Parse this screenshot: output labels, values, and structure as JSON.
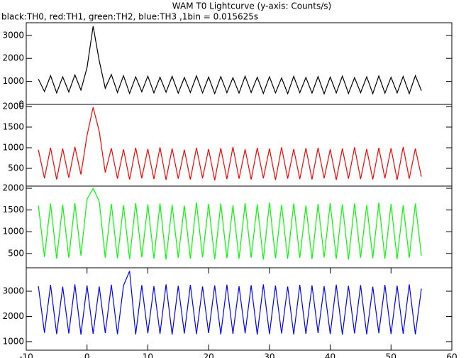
{
  "chart_data": [
    {
      "type": "line",
      "title": "WAM T0 Lightcurve (y-axis: Counts/s)",
      "subtitle": "black:TH0, red:TH1, green:TH2, blue:TH3 ,1bin = 0.015625s",
      "x": [
        -8,
        -7,
        -6,
        -5,
        -4,
        -3,
        -2,
        -1,
        0,
        1,
        2,
        3,
        4,
        5,
        6,
        7,
        8,
        9,
        10,
        11,
        12,
        13,
        14,
        15,
        16,
        17,
        18,
        19,
        20,
        21,
        22,
        23,
        24,
        25,
        26,
        27,
        28,
        29,
        30,
        31,
        32,
        33,
        34,
        35,
        36,
        37,
        38,
        39,
        40,
        41,
        42,
        43,
        44,
        45,
        46,
        47,
        48,
        49,
        50,
        51,
        52,
        53,
        54,
        55
      ],
      "series": [
        {
          "name": "TH0",
          "color": "#000000",
          "values": [
            1100,
            560,
            1250,
            500,
            1200,
            540,
            1280,
            620,
            1600,
            3400,
            1900,
            700,
            1300,
            520,
            1250,
            480,
            1200,
            550,
            1230,
            500,
            1180,
            530,
            1220,
            490,
            1170,
            520,
            1240,
            500,
            1190,
            470,
            1210,
            510,
            1160,
            490,
            1230,
            520,
            1180,
            480,
            1200,
            500,
            1150,
            470,
            1220,
            510,
            1170,
            490,
            1210,
            460,
            1190,
            500,
            1230,
            480,
            1160,
            510,
            1200,
            470,
            1240,
            490,
            1180,
            500,
            1220,
            470,
            1250,
            600
          ]
        }
      ],
      "xlim": [
        -10,
        60
      ],
      "ylim": [
        0,
        3550
      ],
      "yticks": [
        0,
        1000,
        2000,
        3000
      ]
    },
    {
      "type": "line",
      "x": [
        -8,
        -7,
        -6,
        -5,
        -4,
        -3,
        -2,
        -1,
        0,
        1,
        2,
        3,
        4,
        5,
        6,
        7,
        8,
        9,
        10,
        11,
        12,
        13,
        14,
        15,
        16,
        17,
        18,
        19,
        20,
        21,
        22,
        23,
        24,
        25,
        26,
        27,
        28,
        29,
        30,
        31,
        32,
        33,
        34,
        35,
        36,
        37,
        38,
        39,
        40,
        41,
        42,
        43,
        44,
        45,
        46,
        47,
        48,
        49,
        50,
        51,
        52,
        53,
        54,
        55
      ],
      "series": [
        {
          "name": "TH1",
          "color": "#ff0000",
          "values": [
            950,
            260,
            1000,
            230,
            980,
            270,
            1020,
            350,
            1300,
            1980,
            1400,
            400,
            990,
            250,
            960,
            230,
            1000,
            260,
            970,
            240,
            1010,
            220,
            980,
            250,
            950,
            230,
            1000,
            260,
            970,
            210,
            990,
            240,
            1020,
            250,
            960,
            230,
            1000,
            260,
            980,
            220,
            1010,
            250,
            970,
            240,
            990,
            230,
            1000,
            260,
            960,
            220,
            980,
            250,
            1010,
            240,
            970,
            230,
            1000,
            260,
            990,
            220,
            1020,
            250,
            980,
            300
          ]
        }
      ],
      "xlim": [
        -10,
        60
      ],
      "ylim": [
        70,
        2050
      ],
      "yticks": [
        500,
        1000,
        1500,
        2000
      ]
    },
    {
      "type": "line",
      "x": [
        -8,
        -7,
        -6,
        -5,
        -4,
        -3,
        -2,
        -1,
        0,
        1,
        2,
        3,
        4,
        5,
        6,
        7,
        8,
        9,
        10,
        11,
        12,
        13,
        14,
        15,
        16,
        17,
        18,
        19,
        20,
        21,
        22,
        23,
        24,
        25,
        26,
        27,
        28,
        29,
        30,
        31,
        32,
        33,
        34,
        35,
        36,
        37,
        38,
        39,
        40,
        41,
        42,
        43,
        44,
        45,
        46,
        47,
        48,
        49,
        50,
        51,
        52,
        53,
        54,
        55
      ],
      "series": [
        {
          "name": "TH2",
          "color": "#00ff00",
          "values": [
            1600,
            420,
            1650,
            380,
            1620,
            400,
            1660,
            450,
            1750,
            2000,
            1700,
            400,
            1640,
            390,
            1610,
            370,
            1660,
            410,
            1630,
            380,
            1650,
            360,
            1620,
            400,
            1600,
            380,
            1670,
            410,
            1640,
            370,
            1650,
            390,
            1610,
            380,
            1660,
            400,
            1630,
            360,
            1670,
            390,
            1620,
            380,
            1650,
            400,
            1600,
            370,
            1640,
            410,
            1660,
            380,
            1630,
            360,
            1650,
            400,
            1620,
            390,
            1670,
            380,
            1640,
            370,
            1610,
            400,
            1650,
            450
          ]
        }
      ],
      "xlim": [
        -10,
        60
      ],
      "ylim": [
        170,
        2050
      ],
      "yticks": [
        500,
        1000,
        1500,
        2000
      ]
    },
    {
      "type": "line",
      "x": [
        -8,
        -7,
        -6,
        -5,
        -4,
        -3,
        -2,
        -1,
        0,
        1,
        2,
        3,
        4,
        5,
        6,
        7,
        8,
        9,
        10,
        11,
        12,
        13,
        14,
        15,
        16,
        17,
        18,
        19,
        20,
        21,
        22,
        23,
        24,
        25,
        26,
        27,
        28,
        29,
        30,
        31,
        32,
        33,
        34,
        35,
        36,
        37,
        38,
        39,
        40,
        41,
        42,
        43,
        44,
        45,
        46,
        47,
        48,
        49,
        50,
        51,
        52,
        53,
        54,
        55
      ],
      "series": [
        {
          "name": "TH3",
          "color": "#0000ff",
          "values": [
            3200,
            1350,
            3250,
            1300,
            3180,
            1320,
            3270,
            1280,
            3230,
            1310,
            3190,
            1340,
            3260,
            1300,
            3220,
            3800,
            1290,
            3240,
            1330,
            3200,
            1310,
            3270,
            1280,
            3210,
            1320,
            3250,
            1300,
            3190,
            1340,
            3230,
            1290,
            3260,
            1310,
            3200,
            1330,
            3240,
            1280,
            3270,
            1300,
            3220,
            1320,
            3190,
            1290,
            3250,
            1310,
            3230,
            1340,
            3200,
            1300,
            3260,
            1280,
            3210,
            1320,
            3240,
            1290,
            3180,
            1330,
            3250,
            1300,
            3220,
            1310,
            3270,
            1290,
            3100
          ]
        }
      ],
      "xlim": [
        -10,
        60
      ],
      "ylim": [
        660,
        3930
      ],
      "yticks": [
        1000,
        2000,
        3000
      ],
      "xticks": [
        -10,
        0,
        10,
        20,
        30,
        40,
        50,
        60
      ]
    }
  ]
}
